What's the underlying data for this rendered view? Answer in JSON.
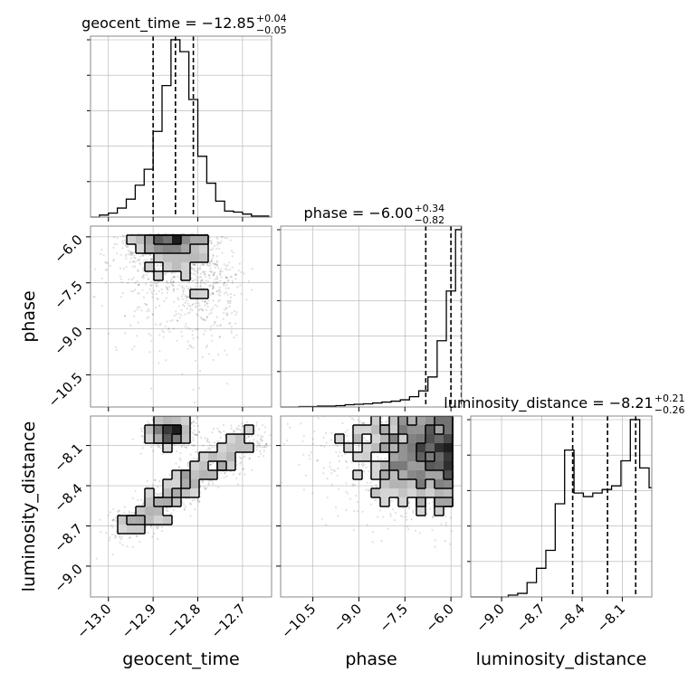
{
  "chart_data": {
    "type": "corner",
    "parameters": [
      "geocent_time",
      "phase",
      "luminosity_distance"
    ],
    "axis_labels": [
      "geocent_time",
      "phase",
      "luminosity_distance"
    ],
    "ranges": {
      "geocent_time": [
        -13.04,
        -12.635
      ],
      "phase": [
        -11.55,
        -5.65
      ],
      "luminosity_distance": [
        -9.23,
        -7.88
      ]
    },
    "ticks": {
      "geocent_time": {
        "values": [
          -13.0,
          -12.9,
          -12.8,
          -12.7
        ],
        "labels": [
          "−13.0",
          "−12.9",
          "−12.8",
          "−12.7"
        ]
      },
      "phase": {
        "values": [
          -10.5,
          -9.0,
          -7.5,
          -6.0
        ],
        "labels": [
          "−10.5",
          "−9.0",
          "−7.5",
          "−6.0"
        ]
      },
      "luminosity_distance": {
        "values": [
          -9.0,
          -8.7,
          -8.4,
          -8.1
        ],
        "labels": [
          "−9.0",
          "−8.7",
          "−8.4",
          "−8.1"
        ]
      }
    },
    "titles": [
      {
        "main": "geocent_time = −12.85",
        "sup": "+0.04",
        "sub": "−0.05"
      },
      {
        "main": "phase = −6.00",
        "sup": "+0.34",
        "sub": "−0.82"
      },
      {
        "main": "luminosity_distance = −8.21",
        "sup": "+0.21",
        "sub": "−0.26"
      }
    ],
    "quantiles": {
      "geocent_time": [
        -12.9,
        -12.85,
        -12.81
      ],
      "phase": [
        -6.82,
        -6.0,
        -5.66
      ],
      "luminosity_distance": [
        -8.47,
        -8.21,
        -8.0
      ]
    },
    "histograms": {
      "geocent_time": {
        "edges": [
          -13.04,
          -13.02,
          -13.0,
          -12.98,
          -12.96,
          -12.94,
          -12.92,
          -12.9,
          -12.88,
          -12.86,
          -12.84,
          -12.82,
          -12.8,
          -12.78,
          -12.76,
          -12.74,
          -12.72,
          -12.7,
          -12.68,
          -12.66,
          -12.64
        ],
        "counts": [
          0,
          2,
          4,
          9,
          18,
          32,
          48,
          86,
          132,
          178,
          166,
          118,
          61,
          34,
          16,
          6,
          5,
          3,
          1,
          1
        ]
      },
      "phase": {
        "edges": [
          -11.55,
          -11.25,
          -10.95,
          -10.65,
          -10.35,
          -10.05,
          -9.75,
          -9.45,
          -9.15,
          -8.85,
          -8.55,
          -8.25,
          -7.95,
          -7.65,
          -7.35,
          -7.05,
          -6.75,
          -6.45,
          -6.15,
          -5.85,
          -5.65
        ],
        "counts": [
          0,
          0,
          1,
          1,
          2,
          2,
          3,
          5,
          6,
          7,
          9,
          11,
          13,
          16,
          23,
          36,
          67,
          148,
          259,
          396
        ]
      },
      "luminosity_distance": {
        "edges": [
          -9.23,
          -9.16,
          -9.09,
          -9.02,
          -8.95,
          -8.88,
          -8.81,
          -8.74,
          -8.67,
          -8.6,
          -8.53,
          -8.46,
          -8.39,
          -8.32,
          -8.25,
          -8.18,
          -8.11,
          -8.04,
          -7.97,
          -7.9,
          -7.88
        ],
        "counts": [
          0,
          0,
          0,
          0,
          1,
          2,
          8,
          16,
          26,
          52,
          82,
          58,
          56,
          58,
          60,
          62,
          76,
          99,
          72,
          61
        ]
      }
    },
    "grid": true,
    "contour_levels": 3,
    "legend": "none"
  }
}
